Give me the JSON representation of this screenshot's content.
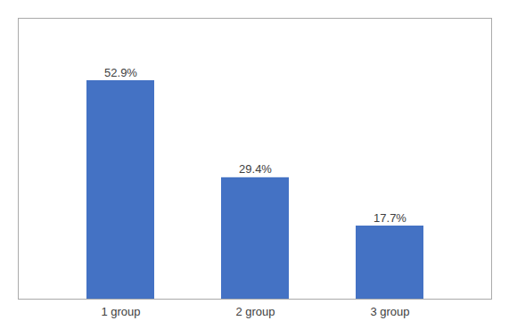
{
  "chart_data": {
    "type": "bar",
    "categories": [
      "1 group",
      "2 group",
      "3 group"
    ],
    "values": [
      52.9,
      29.4,
      17.7
    ],
    "value_labels": [
      "52.9%",
      "29.4%",
      "17.7%"
    ],
    "data_labels": true,
    "color": "#4472C4",
    "ylim": [
      0,
      68
    ],
    "tick_labels": "x"
  }
}
